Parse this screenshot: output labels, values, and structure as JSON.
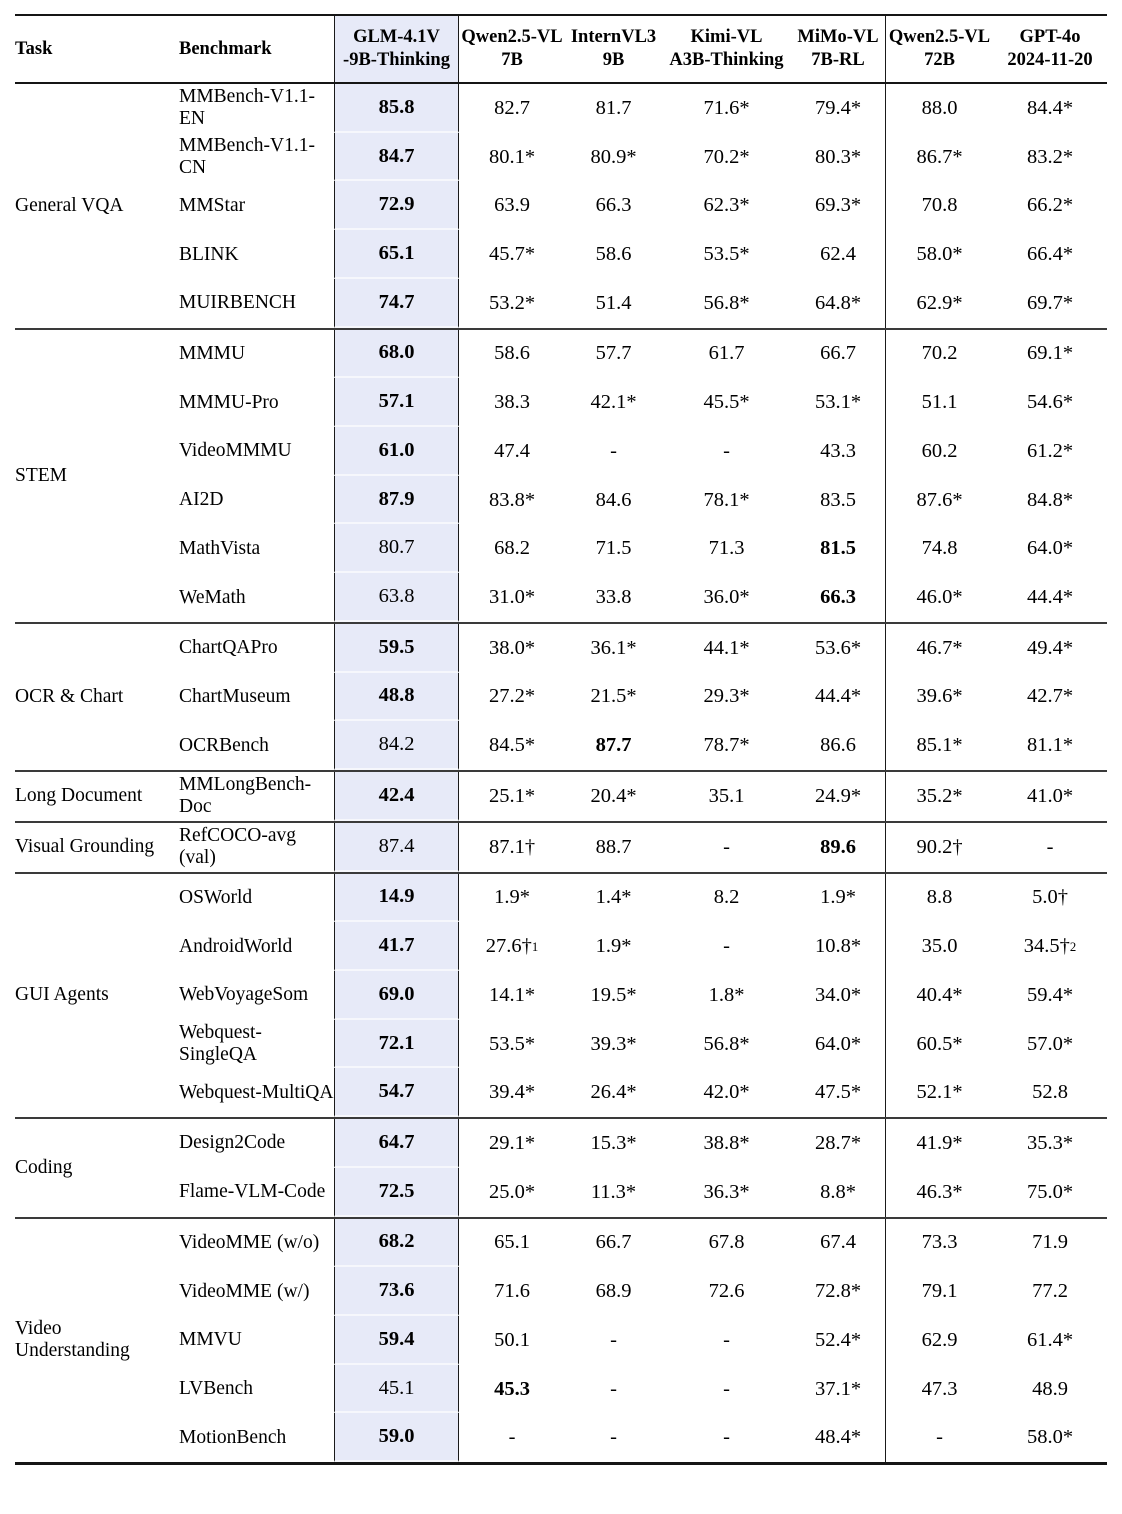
{
  "colors": {
    "highlight_column": "#e7eaf8",
    "rule_dark": "#151515",
    "rule_group": "#3a3a3a"
  },
  "table": {
    "header": {
      "task": "Task",
      "benchmark": "Benchmark",
      "models": [
        {
          "line1": "GLM-4.1V",
          "line2": "-9B-Thinking",
          "highlight": true
        },
        {
          "line1": "Qwen2.5-VL",
          "line2": "7B"
        },
        {
          "line1": "InternVL3",
          "line2": "9B"
        },
        {
          "line1": "Kimi-VL",
          "line2": "A3B-Thinking"
        },
        {
          "line1": "MiMo-VL",
          "line2": "7B-RL"
        },
        {
          "line1": "Qwen2.5-VL",
          "line2": "72B"
        },
        {
          "line1": "GPT-4o",
          "line2": "2024-11-20"
        }
      ]
    },
    "groups": [
      {
        "task": "General VQA",
        "rows": [
          {
            "benchmark": "MMBench-V1.1-EN",
            "cells": [
              {
                "t": "85.8",
                "b": true
              },
              {
                "t": "82.7"
              },
              {
                "t": "81.7"
              },
              {
                "t": "71.6*"
              },
              {
                "t": "79.4*"
              },
              {
                "t": "88.0"
              },
              {
                "t": "84.4*"
              }
            ]
          },
          {
            "benchmark": "MMBench-V1.1-CN",
            "cells": [
              {
                "t": "84.7",
                "b": true
              },
              {
                "t": "80.1*"
              },
              {
                "t": "80.9*"
              },
              {
                "t": "70.2*"
              },
              {
                "t": "80.3*"
              },
              {
                "t": "86.7*"
              },
              {
                "t": "83.2*"
              }
            ]
          },
          {
            "benchmark": "MMStar",
            "cells": [
              {
                "t": "72.9",
                "b": true
              },
              {
                "t": "63.9"
              },
              {
                "t": "66.3"
              },
              {
                "t": "62.3*"
              },
              {
                "t": "69.3*"
              },
              {
                "t": "70.8"
              },
              {
                "t": "66.2*"
              }
            ]
          },
          {
            "benchmark": "BLINK",
            "cells": [
              {
                "t": "65.1",
                "b": true
              },
              {
                "t": "45.7*"
              },
              {
                "t": "58.6"
              },
              {
                "t": "53.5*"
              },
              {
                "t": "62.4"
              },
              {
                "t": "58.0*"
              },
              {
                "t": "66.4*"
              }
            ]
          },
          {
            "benchmark": "MUIRBENCH",
            "cells": [
              {
                "t": "74.7",
                "b": true
              },
              {
                "t": "53.2*"
              },
              {
                "t": "51.4"
              },
              {
                "t": "56.8*"
              },
              {
                "t": "64.8*"
              },
              {
                "t": "62.9*"
              },
              {
                "t": "69.7*"
              }
            ]
          }
        ]
      },
      {
        "task": "STEM",
        "rows": [
          {
            "benchmark": "MMMU",
            "cells": [
              {
                "t": "68.0",
                "b": true
              },
              {
                "t": "58.6"
              },
              {
                "t": "57.7"
              },
              {
                "t": "61.7"
              },
              {
                "t": "66.7"
              },
              {
                "t": "70.2"
              },
              {
                "t": "69.1*"
              }
            ]
          },
          {
            "benchmark": "MMMU-Pro",
            "cells": [
              {
                "t": "57.1",
                "b": true
              },
              {
                "t": "38.3"
              },
              {
                "t": "42.1*"
              },
              {
                "t": "45.5*"
              },
              {
                "t": "53.1*"
              },
              {
                "t": "51.1"
              },
              {
                "t": "54.6*"
              }
            ]
          },
          {
            "benchmark": "VideoMMMU",
            "cells": [
              {
                "t": "61.0",
                "b": true
              },
              {
                "t": "47.4"
              },
              {
                "t": "-"
              },
              {
                "t": "-"
              },
              {
                "t": "43.3"
              },
              {
                "t": "60.2"
              },
              {
                "t": "61.2*"
              }
            ]
          },
          {
            "benchmark": "AI2D",
            "cells": [
              {
                "t": "87.9",
                "b": true
              },
              {
                "t": "83.8*"
              },
              {
                "t": "84.6"
              },
              {
                "t": "78.1*"
              },
              {
                "t": "83.5"
              },
              {
                "t": "87.6*"
              },
              {
                "t": "84.8*"
              }
            ]
          },
          {
            "benchmark": "MathVista",
            "cells": [
              {
                "t": "80.7"
              },
              {
                "t": "68.2"
              },
              {
                "t": "71.5"
              },
              {
                "t": "71.3"
              },
              {
                "t": "81.5",
                "b": true
              },
              {
                "t": "74.8"
              },
              {
                "t": "64.0*"
              }
            ]
          },
          {
            "benchmark": "WeMath",
            "cells": [
              {
                "t": "63.8"
              },
              {
                "t": "31.0*"
              },
              {
                "t": "33.8"
              },
              {
                "t": "36.0*"
              },
              {
                "t": "66.3",
                "b": true
              },
              {
                "t": "46.0*"
              },
              {
                "t": "44.4*"
              }
            ]
          }
        ]
      },
      {
        "task": "OCR & Chart",
        "rows": [
          {
            "benchmark": "ChartQAPro",
            "cells": [
              {
                "t": "59.5",
                "b": true
              },
              {
                "t": "38.0*"
              },
              {
                "t": "36.1*"
              },
              {
                "t": "44.1*"
              },
              {
                "t": "53.6*"
              },
              {
                "t": "46.7*"
              },
              {
                "t": "49.4*"
              }
            ]
          },
          {
            "benchmark": "ChartMuseum",
            "cells": [
              {
                "t": "48.8",
                "b": true
              },
              {
                "t": "27.2*"
              },
              {
                "t": "21.5*"
              },
              {
                "t": "29.3*"
              },
              {
                "t": "44.4*"
              },
              {
                "t": "39.6*"
              },
              {
                "t": "42.7*"
              }
            ]
          },
          {
            "benchmark": "OCRBench",
            "cells": [
              {
                "t": "84.2"
              },
              {
                "t": "84.5*"
              },
              {
                "t": "87.7",
                "b": true
              },
              {
                "t": "78.7*"
              },
              {
                "t": "86.6"
              },
              {
                "t": "85.1*"
              },
              {
                "t": "81.1*"
              }
            ]
          }
        ]
      },
      {
        "task": "Long Document",
        "rows": [
          {
            "benchmark": "MMLongBench-Doc",
            "cells": [
              {
                "t": "42.4",
                "b": true
              },
              {
                "t": "25.1*"
              },
              {
                "t": "20.4*"
              },
              {
                "t": "35.1"
              },
              {
                "t": "24.9*"
              },
              {
                "t": "35.2*"
              },
              {
                "t": "41.0*"
              }
            ]
          }
        ]
      },
      {
        "task": "Visual Grounding",
        "rows": [
          {
            "benchmark": "RefCOCO-avg (val)",
            "cells": [
              {
                "t": "87.4"
              },
              {
                "t": "87.1†"
              },
              {
                "t": "88.7"
              },
              {
                "t": "-"
              },
              {
                "t": "89.6",
                "b": true
              },
              {
                "t": "90.2†"
              },
              {
                "t": "-"
              }
            ]
          }
        ]
      },
      {
        "task": "GUI Agents",
        "rows": [
          {
            "benchmark": "OSWorld",
            "cells": [
              {
                "t": "14.9",
                "b": true
              },
              {
                "t": "1.9*"
              },
              {
                "t": "1.4*"
              },
              {
                "t": "8.2"
              },
              {
                "t": "1.9*"
              },
              {
                "t": "8.8"
              },
              {
                "t": "5.0†"
              }
            ]
          },
          {
            "benchmark": "AndroidWorld",
            "cells": [
              {
                "t": "41.7",
                "b": true
              },
              {
                "t": "27.6†",
                "sup": "1"
              },
              {
                "t": "1.9*"
              },
              {
                "t": "-"
              },
              {
                "t": "10.8*"
              },
              {
                "t": "35.0"
              },
              {
                "t": "34.5†",
                "sup": "2"
              }
            ]
          },
          {
            "benchmark": "WebVoyageSom",
            "cells": [
              {
                "t": "69.0",
                "b": true
              },
              {
                "t": "14.1*"
              },
              {
                "t": "19.5*"
              },
              {
                "t": "1.8*"
              },
              {
                "t": "34.0*"
              },
              {
                "t": "40.4*"
              },
              {
                "t": "59.4*"
              }
            ]
          },
          {
            "benchmark": "Webquest-SingleQA",
            "cells": [
              {
                "t": "72.1",
                "b": true
              },
              {
                "t": "53.5*"
              },
              {
                "t": "39.3*"
              },
              {
                "t": "56.8*"
              },
              {
                "t": "64.0*"
              },
              {
                "t": "60.5*"
              },
              {
                "t": "57.0*"
              }
            ]
          },
          {
            "benchmark": "Webquest-MultiQA",
            "cells": [
              {
                "t": "54.7",
                "b": true
              },
              {
                "t": "39.4*"
              },
              {
                "t": "26.4*"
              },
              {
                "t": "42.0*"
              },
              {
                "t": "47.5*"
              },
              {
                "t": "52.1*"
              },
              {
                "t": "52.8"
              }
            ]
          }
        ]
      },
      {
        "task": "Coding",
        "rows": [
          {
            "benchmark": "Design2Code",
            "cells": [
              {
                "t": "64.7",
                "b": true
              },
              {
                "t": "29.1*"
              },
              {
                "t": "15.3*"
              },
              {
                "t": "38.8*"
              },
              {
                "t": "28.7*"
              },
              {
                "t": "41.9*"
              },
              {
                "t": "35.3*"
              }
            ]
          },
          {
            "benchmark": "Flame-VLM-Code",
            "cells": [
              {
                "t": "72.5",
                "b": true
              },
              {
                "t": "25.0*"
              },
              {
                "t": "11.3*"
              },
              {
                "t": "36.3*"
              },
              {
                "t": "8.8*"
              },
              {
                "t": "46.3*"
              },
              {
                "t": "75.0*"
              }
            ]
          }
        ]
      },
      {
        "task": "Video Understanding",
        "rows": [
          {
            "benchmark": "VideoMME (w/o)",
            "cells": [
              {
                "t": "68.2",
                "b": true
              },
              {
                "t": "65.1"
              },
              {
                "t": "66.7"
              },
              {
                "t": "67.8"
              },
              {
                "t": "67.4"
              },
              {
                "t": "73.3"
              },
              {
                "t": "71.9"
              }
            ]
          },
          {
            "benchmark": "VideoMME (w/)",
            "cells": [
              {
                "t": "73.6",
                "b": true
              },
              {
                "t": "71.6"
              },
              {
                "t": "68.9"
              },
              {
                "t": "72.6"
              },
              {
                "t": "72.8*"
              },
              {
                "t": "79.1"
              },
              {
                "t": "77.2"
              }
            ]
          },
          {
            "benchmark": "MMVU",
            "cells": [
              {
                "t": "59.4",
                "b": true
              },
              {
                "t": "50.1"
              },
              {
                "t": "-"
              },
              {
                "t": "-"
              },
              {
                "t": "52.4*"
              },
              {
                "t": "62.9"
              },
              {
                "t": "61.4*"
              }
            ]
          },
          {
            "benchmark": "LVBench",
            "cells": [
              {
                "t": "45.1"
              },
              {
                "t": "45.3",
                "b": true
              },
              {
                "t": "-"
              },
              {
                "t": "-"
              },
              {
                "t": "37.1*"
              },
              {
                "t": "47.3"
              },
              {
                "t": "48.9"
              }
            ]
          },
          {
            "benchmark": "MotionBench",
            "cells": [
              {
                "t": "59.0",
                "b": true
              },
              {
                "t": "-"
              },
              {
                "t": "-"
              },
              {
                "t": "-"
              },
              {
                "t": "48.4*"
              },
              {
                "t": "-"
              },
              {
                "t": "58.0*"
              }
            ]
          }
        ]
      }
    ]
  }
}
